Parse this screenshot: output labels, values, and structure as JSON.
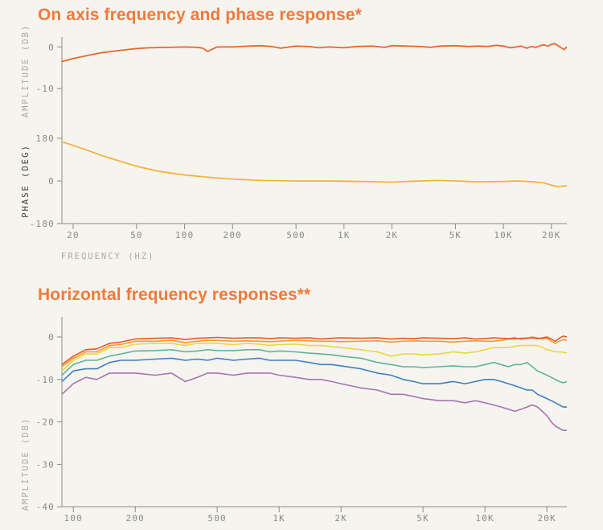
{
  "titles": {
    "top": "On axis frequency and phase response*",
    "bottom": "Horizontal frequency responses**"
  },
  "colors": {
    "title": "#ef7a3a",
    "axis": "#8a8a86",
    "background": "#f6f4ef"
  },
  "chart_data": [
    {
      "type": "line",
      "title": "On axis frequency and phase response*",
      "xlabel": "FREQUENCY (HZ)",
      "xscale": "log",
      "xlim": [
        17,
        25000
      ],
      "x_ticks": [
        20,
        50,
        100,
        200,
        500,
        1000,
        2000,
        5000,
        10000,
        20000
      ],
      "x_tick_labels": [
        "20",
        "50",
        "100",
        "200",
        "500",
        "1K",
        "2K",
        "5K",
        "10K",
        "20K"
      ],
      "panels": [
        {
          "name": "amplitude",
          "ylabel": "AMPLITUDE (DB)",
          "ylim": [
            -15,
            2
          ],
          "y_ticks": [
            0,
            -10
          ],
          "y_tick_labels": [
            "0",
            "-10"
          ],
          "series": [
            {
              "color": "#e8662f",
              "x": [
                17,
                20,
                25,
                30,
                40,
                50,
                60,
                80,
                100,
                120,
                130,
                140,
                150,
                160,
                200,
                250,
                300,
                350,
                400,
                500,
                600,
                700,
                800,
                1000,
                1200,
                1500,
                1800,
                2000,
                2500,
                3000,
                3500,
                4000,
                5000,
                6000,
                7000,
                8000,
                9000,
                10000,
                11000,
                12000,
                13000,
                14000,
                15000,
                16000,
                17000,
                18000,
                19000,
                20000,
                21000,
                22000,
                23000,
                24000,
                25000
              ],
              "y": [
                -3.5,
                -2.8,
                -2,
                -1.4,
                -0.8,
                -0.4,
                -0.2,
                -0.1,
                0,
                -0.1,
                -0.3,
                -1.1,
                -0.5,
                0,
                0,
                0.2,
                0.3,
                0.1,
                -0.3,
                0.2,
                0.1,
                -0.2,
                0,
                -0.2,
                0.1,
                0.2,
                -0.1,
                0.3,
                0.2,
                0.1,
                -0.1,
                0.2,
                0.3,
                0.1,
                0.2,
                0.1,
                0.4,
                0.2,
                -0.2,
                0,
                0.2,
                -0.3,
                0.1,
                -0.1,
                0.3,
                0.5,
                0.2,
                0.6,
                0.8,
                0.3,
                -0.2,
                -0.6,
                0
              ]
            }
          ]
        },
        {
          "name": "phase",
          "ylabel": "PHASE (DEG)",
          "ylim": [
            -180,
            180
          ],
          "y_ticks": [
            180,
            0,
            -180
          ],
          "y_tick_labels": [
            "180",
            "0",
            "-180"
          ],
          "series": [
            {
              "color": "#f5b23a",
              "x": [
                17,
                20,
                25,
                30,
                40,
                50,
                70,
                100,
                150,
                200,
                300,
                500,
                700,
                1000,
                1500,
                2000,
                2500,
                3000,
                4000,
                5000,
                7000,
                10000,
                12000,
                15000,
                18000,
                20000,
                22000,
                25000
              ],
              "y": [
                165,
                150,
                128,
                108,
                82,
                62,
                40,
                25,
                14,
                8,
                2,
                0,
                0,
                -1,
                -3,
                -5,
                -2,
                0,
                2,
                0,
                -4,
                -2,
                0,
                -3,
                -8,
                -18,
                -24,
                -20
              ]
            }
          ]
        }
      ]
    },
    {
      "type": "line",
      "title": "Horizontal frequency responses**",
      "ylabel": "AMPLITUDE (DB)",
      "xscale": "log",
      "xlim": [
        88,
        25000
      ],
      "ylim": [
        -40,
        3
      ],
      "y_ticks": [
        0,
        -10,
        -20,
        -30,
        -40
      ],
      "y_tick_labels": [
        "0",
        "-10",
        "-20",
        "-30",
        "-40"
      ],
      "x_ticks": [
        100,
        200,
        500,
        1000,
        2000,
        5000,
        10000,
        20000
      ],
      "x_tick_labels": [
        "100",
        "200",
        "500",
        "1K",
        "2K",
        "5K",
        "10K",
        "20K"
      ],
      "x": [
        88,
        100,
        115,
        130,
        150,
        170,
        200,
        250,
        300,
        350,
        400,
        450,
        500,
        600,
        700,
        800,
        900,
        1000,
        1200,
        1400,
        1600,
        1800,
        2000,
        2500,
        3000,
        3500,
        4000,
        4500,
        5000,
        6000,
        7000,
        8000,
        9000,
        10000,
        11000,
        12000,
        13000,
        14000,
        15000,
        16000,
        17000,
        18000,
        19000,
        20000,
        21000,
        22000,
        23000,
        24000,
        25000
      ],
      "series": [
        {
          "color": "#e8572b",
          "y": [
            -6.5,
            -4.5,
            -3,
            -2.8,
            -1.5,
            -1.2,
            -0.5,
            -0.3,
            -0.2,
            -0.6,
            -0.3,
            -0.2,
            -0.1,
            -0.3,
            -0.2,
            -0.2,
            -0.4,
            -0.2,
            -0.3,
            -0.2,
            -0.5,
            -0.3,
            -0.2,
            -0.3,
            -0.2,
            -0.5,
            -0.3,
            -0.4,
            -0.2,
            -0.3,
            -0.4,
            -0.2,
            -0.5,
            -0.4,
            -0.2,
            -0.3,
            -0.4,
            -0.2,
            -0.5,
            -0.3,
            -0.2,
            -0.4,
            -0.2,
            0,
            -0.5,
            -1,
            -0.3,
            0.2,
            0
          ]
        },
        {
          "color": "#f59a32",
          "y": [
            -7,
            -5,
            -3.5,
            -3.5,
            -2,
            -1.8,
            -1,
            -1,
            -0.8,
            -1.3,
            -1,
            -0.8,
            -0.8,
            -1,
            -0.9,
            -1,
            -1.1,
            -1,
            -0.8,
            -0.9,
            -1,
            -1,
            -1.1,
            -1,
            -0.9,
            -1.2,
            -1,
            -0.9,
            -1,
            -1,
            -1.2,
            -1,
            -0.9,
            -1,
            -1,
            -0.8,
            -0.5,
            -0.5,
            -0.3,
            -0.2,
            0,
            -0.2,
            -0.5,
            -0.3,
            -1,
            -1.5,
            -1,
            -0.6,
            -0.8
          ]
        },
        {
          "color": "#e8d83c",
          "y": [
            -8,
            -5.5,
            -4,
            -4,
            -2.5,
            -2.5,
            -1.7,
            -1.5,
            -1.5,
            -2,
            -1.5,
            -1.5,
            -1.5,
            -1.8,
            -1.5,
            -1.7,
            -2,
            -1.8,
            -1.7,
            -2,
            -2,
            -2.3,
            -2.5,
            -3,
            -3.5,
            -4.5,
            -4,
            -4,
            -4.2,
            -4,
            -3.5,
            -3.8,
            -3.5,
            -3,
            -2.5,
            -2.5,
            -2.5,
            -2.2,
            -2,
            -2,
            -2,
            -2,
            -2.5,
            -3,
            -3.2,
            -3.5,
            -3.5,
            -3.6,
            -3.8
          ]
        },
        {
          "color": "#5eb39a",
          "y": [
            -9,
            -6.5,
            -5.5,
            -5.5,
            -4.5,
            -4,
            -3.3,
            -3.2,
            -3,
            -3.5,
            -3.3,
            -3,
            -3.2,
            -3.2,
            -3,
            -3,
            -3.5,
            -3.3,
            -3.5,
            -3.8,
            -4,
            -4.2,
            -4.5,
            -5,
            -6,
            -6.5,
            -7,
            -7,
            -7.2,
            -7,
            -6.8,
            -7,
            -7,
            -6.5,
            -6,
            -6.5,
            -7,
            -6.5,
            -6.5,
            -6,
            -7,
            -8,
            -8.5,
            -9,
            -9.5,
            -10,
            -10.5,
            -10.8,
            -10.5
          ]
        },
        {
          "color": "#3d80c0",
          "y": [
            -10.5,
            -8,
            -7.5,
            -7.5,
            -6,
            -5.5,
            -5.5,
            -5.2,
            -5,
            -5.5,
            -5.2,
            -5.5,
            -5,
            -5.5,
            -5.2,
            -5,
            -5.5,
            -5.5,
            -5.5,
            -6,
            -6.5,
            -6.5,
            -6.8,
            -7.5,
            -8.5,
            -9,
            -10,
            -10.5,
            -11,
            -11,
            -10.5,
            -11,
            -10.5,
            -10,
            -10,
            -10.5,
            -11,
            -11.5,
            -12,
            -12.5,
            -12.5,
            -13.5,
            -14,
            -14.5,
            -15,
            -15.5,
            -16,
            -16.5,
            -16.5
          ]
        },
        {
          "color": "#a774b3",
          "y": [
            -13.5,
            -11,
            -9.5,
            -10,
            -8.5,
            -8.5,
            -8.5,
            -9,
            -8.5,
            -10.5,
            -9.5,
            -8.5,
            -8.5,
            -9,
            -8.5,
            -8.5,
            -8.5,
            -9,
            -9.5,
            -10,
            -10,
            -10.5,
            -11,
            -12,
            -12.5,
            -13.5,
            -13.5,
            -14,
            -14.5,
            -15,
            -15,
            -15.5,
            -15,
            -15.5,
            -16,
            -16.5,
            -17,
            -17.5,
            -17,
            -16.5,
            -16,
            -16.5,
            -17.5,
            -18.5,
            -20,
            -21,
            -21.5,
            -22,
            -22
          ]
        }
      ]
    }
  ]
}
